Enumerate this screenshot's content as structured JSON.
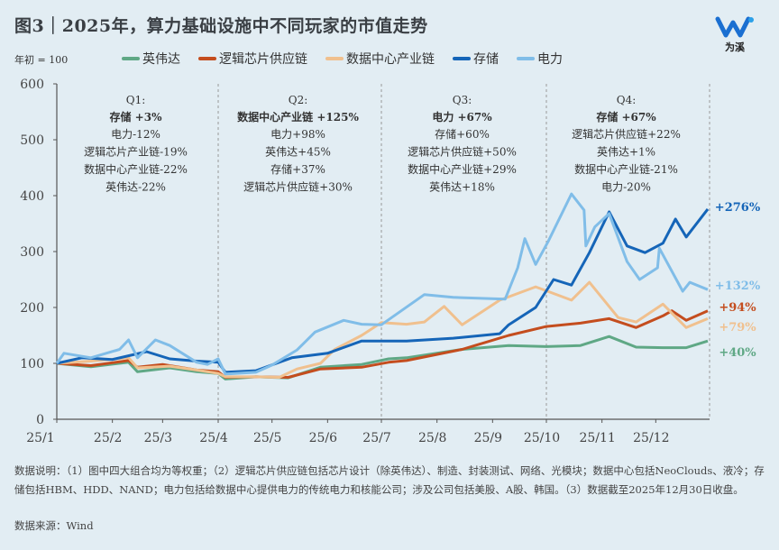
{
  "title": "图3｜2025年，算力基础设施中不同玩家的市值走势",
  "logo": {
    "text": "为溪",
    "color": "#1a6fd1"
  },
  "chart_data": {
    "type": "line",
    "title": "图3｜2025年，算力基础设施中不同玩家的市值走势",
    "ylabel": "年初 = 100",
    "ylim": [
      0,
      600
    ],
    "yticks": [
      "0",
      "100",
      "200",
      "300",
      "400",
      "500",
      "600"
    ],
    "xlim": [
      "2025-01-01",
      "2025-12-31"
    ],
    "xticks": [
      {
        "date": "2025-01-01",
        "label": "25/1"
      },
      {
        "date": "2025-02-01",
        "label": "25/2"
      },
      {
        "date": "2025-03-01",
        "label": "25/3"
      },
      {
        "date": "2025-04-01",
        "label": "25/4"
      },
      {
        "date": "2025-05-01",
        "label": "25/5"
      },
      {
        "date": "2025-06-01",
        "label": "25/6"
      },
      {
        "date": "2025-07-01",
        "label": "25/7"
      },
      {
        "date": "2025-08-01",
        "label": "25/8"
      },
      {
        "date": "2025-09-01",
        "label": "25/9"
      },
      {
        "date": "2025-10-01",
        "label": "25/10"
      },
      {
        "date": "2025-11-01",
        "label": "25/11"
      },
      {
        "date": "2025-12-01",
        "label": "25/12"
      }
    ],
    "quarter_dividers": [
      "2025-04-01",
      "2025-07-01",
      "2025-10-01"
    ],
    "grid": false,
    "legend": "top",
    "series": [
      {
        "name": "英伟达",
        "color": "#5fa885",
        "end_label": "+40%",
        "points": [
          [
            "2025-01-01",
            100
          ],
          [
            "2025-01-20",
            94
          ],
          [
            "2025-02-10",
            102
          ],
          [
            "2025-02-15",
            85
          ],
          [
            "2025-03-05",
            92
          ],
          [
            "2025-03-20",
            85
          ],
          [
            "2025-04-01",
            82
          ],
          [
            "2025-04-05",
            72
          ],
          [
            "2025-04-22",
            76
          ],
          [
            "2025-05-10",
            74
          ],
          [
            "2025-05-28",
            93
          ],
          [
            "2025-06-20",
            98
          ],
          [
            "2025-07-05",
            108
          ],
          [
            "2025-07-15",
            110
          ],
          [
            "2025-08-15",
            125
          ],
          [
            "2025-09-10",
            132
          ],
          [
            "2025-10-01",
            130
          ],
          [
            "2025-10-20",
            132
          ],
          [
            "2025-11-05",
            148
          ],
          [
            "2025-11-20",
            129
          ],
          [
            "2025-12-05",
            128
          ],
          [
            "2025-12-18",
            128
          ],
          [
            "2025-12-30",
            140
          ]
        ]
      },
      {
        "name": "逻辑芯片供应链",
        "color": "#c44d1e",
        "end_label": "+94%",
        "points": [
          [
            "2025-01-01",
            100
          ],
          [
            "2025-01-20",
            96
          ],
          [
            "2025-02-10",
            105
          ],
          [
            "2025-02-15",
            93
          ],
          [
            "2025-03-01",
            98
          ],
          [
            "2025-03-20",
            88
          ],
          [
            "2025-04-01",
            85
          ],
          [
            "2025-04-05",
            75
          ],
          [
            "2025-04-22",
            76
          ],
          [
            "2025-05-10",
            75
          ],
          [
            "2025-05-28",
            90
          ],
          [
            "2025-06-20",
            93
          ],
          [
            "2025-07-05",
            102
          ],
          [
            "2025-07-15",
            105
          ],
          [
            "2025-08-15",
            125
          ],
          [
            "2025-09-10",
            150
          ],
          [
            "2025-10-01",
            166
          ],
          [
            "2025-10-20",
            172
          ],
          [
            "2025-11-05",
            180
          ],
          [
            "2025-11-20",
            164
          ],
          [
            "2025-12-05",
            185
          ],
          [
            "2025-12-10",
            194
          ],
          [
            "2025-12-18",
            177
          ],
          [
            "2025-12-30",
            194
          ]
        ]
      },
      {
        "name": "数据中心产业链",
        "color": "#f0c08e",
        "end_label": "+79%",
        "points": [
          [
            "2025-01-01",
            100
          ],
          [
            "2025-01-20",
            104
          ],
          [
            "2025-02-10",
            110
          ],
          [
            "2025-02-15",
            92
          ],
          [
            "2025-03-05",
            95
          ],
          [
            "2025-03-20",
            88
          ],
          [
            "2025-04-01",
            82
          ],
          [
            "2025-04-05",
            76
          ],
          [
            "2025-04-22",
            76
          ],
          [
            "2025-05-05",
            75
          ],
          [
            "2025-05-15",
            90
          ],
          [
            "2025-05-28",
            100
          ],
          [
            "2025-06-05",
            125
          ],
          [
            "2025-06-20",
            150
          ],
          [
            "2025-07-01",
            173
          ],
          [
            "2025-07-15",
            170
          ],
          [
            "2025-07-25",
            174
          ],
          [
            "2025-08-05",
            202
          ],
          [
            "2025-08-15",
            169
          ],
          [
            "2025-09-05",
            213
          ],
          [
            "2025-09-25",
            237
          ],
          [
            "2025-10-15",
            213
          ],
          [
            "2025-10-25",
            245
          ],
          [
            "2025-11-10",
            182
          ],
          [
            "2025-11-20",
            174
          ],
          [
            "2025-12-05",
            206
          ],
          [
            "2025-12-18",
            164
          ],
          [
            "2025-12-30",
            180
          ]
        ]
      },
      {
        "name": "存储",
        "color": "#1565b8",
        "end_label": "+276%",
        "points": [
          [
            "2025-01-01",
            100
          ],
          [
            "2025-01-15",
            110
          ],
          [
            "2025-02-01",
            107
          ],
          [
            "2025-02-20",
            121
          ],
          [
            "2025-03-05",
            108
          ],
          [
            "2025-03-20",
            104
          ],
          [
            "2025-04-01",
            102
          ],
          [
            "2025-04-05",
            84
          ],
          [
            "2025-04-22",
            87
          ],
          [
            "2025-05-12",
            110
          ],
          [
            "2025-06-01",
            118
          ],
          [
            "2025-06-20",
            140
          ],
          [
            "2025-07-15",
            140
          ],
          [
            "2025-08-10",
            145
          ],
          [
            "2025-09-05",
            153
          ],
          [
            "2025-09-10",
            169
          ],
          [
            "2025-09-25",
            200
          ],
          [
            "2025-10-05",
            250
          ],
          [
            "2025-10-15",
            240
          ],
          [
            "2025-10-25",
            298
          ],
          [
            "2025-11-05",
            371
          ],
          [
            "2025-11-15",
            310
          ],
          [
            "2025-11-25",
            298
          ],
          [
            "2025-12-05",
            315
          ],
          [
            "2025-12-12",
            358
          ],
          [
            "2025-12-18",
            326
          ],
          [
            "2025-12-30",
            376
          ]
        ]
      },
      {
        "name": "电力",
        "color": "#80bde8",
        "end_label": "+132%",
        "points": [
          [
            "2025-01-01",
            100
          ],
          [
            "2025-01-05",
            118
          ],
          [
            "2025-01-20",
            110
          ],
          [
            "2025-02-05",
            125
          ],
          [
            "2025-02-10",
            142
          ],
          [
            "2025-02-15",
            110
          ],
          [
            "2025-02-25",
            142
          ],
          [
            "2025-03-05",
            132
          ],
          [
            "2025-03-20",
            102
          ],
          [
            "2025-03-26",
            98
          ],
          [
            "2025-04-01",
            108
          ],
          [
            "2025-04-05",
            81
          ],
          [
            "2025-04-22",
            84
          ],
          [
            "2025-05-01",
            97
          ],
          [
            "2025-05-15",
            124
          ],
          [
            "2025-05-25",
            156
          ],
          [
            "2025-06-10",
            177
          ],
          [
            "2025-06-20",
            170
          ],
          [
            "2025-07-01",
            169
          ],
          [
            "2025-07-25",
            223
          ],
          [
            "2025-08-10",
            218
          ],
          [
            "2025-09-08",
            215
          ],
          [
            "2025-09-15",
            271
          ],
          [
            "2025-09-19",
            323
          ],
          [
            "2025-09-25",
            277
          ],
          [
            "2025-10-02",
            318
          ],
          [
            "2025-10-15",
            403
          ],
          [
            "2025-10-22",
            374
          ],
          [
            "2025-10-23",
            310
          ],
          [
            "2025-10-28",
            344
          ],
          [
            "2025-11-05",
            368
          ],
          [
            "2025-11-15",
            282
          ],
          [
            "2025-11-22",
            250
          ],
          [
            "2025-12-02",
            271
          ],
          [
            "2025-12-03",
            306
          ],
          [
            "2025-12-16",
            229
          ],
          [
            "2025-12-20",
            245
          ],
          [
            "2025-12-30",
            232
          ]
        ]
      }
    ],
    "annotations": [
      {
        "quarter": "Q1:",
        "lead": "存储 +3%",
        "lead_color": "#1565b8",
        "lines": [
          "电力-12%",
          "逻辑芯片产业链-19%",
          "数据中心产业链-22%",
          "英伟达-22%"
        ]
      },
      {
        "quarter": "Q2:",
        "lead": "数据中心产业链 +125%",
        "lead_color": "#f0b878",
        "lines": [
          "电力+98%",
          "英伟达+45%",
          "存储+37%",
          "逻辑芯片供应链+30%"
        ]
      },
      {
        "quarter": "Q3:",
        "lead": "电力 +67%",
        "lead_color": "#80bde8",
        "lines": [
          "存储+60%",
          "逻辑芯片供应链+50%",
          "数据中心产业链+29%",
          "英伟达+18%"
        ]
      },
      {
        "quarter": "Q4:",
        "lead": "存储 +67%",
        "lead_color": "#1565b8",
        "lines": [
          "逻辑芯片供应链+22%",
          "英伟达+1%",
          "数据中心产业链-21%",
          "电力-20%"
        ]
      }
    ]
  },
  "note": "数据说明：（1）图中四大组合均为等权重；（2）逻辑芯片供应链包括芯片设计（除英伟达）、制造、封装测试、网络、光模块；数据中心包括NeoClouds、液冷；存储包括HBM、HDD、NAND；电力包括给数据中心提供电力的传统电力和核能公司；涉及公司包括美股、A股、韩国。（3）数据截至2025年12月30日收盘。",
  "source": "数据来源：Wind"
}
